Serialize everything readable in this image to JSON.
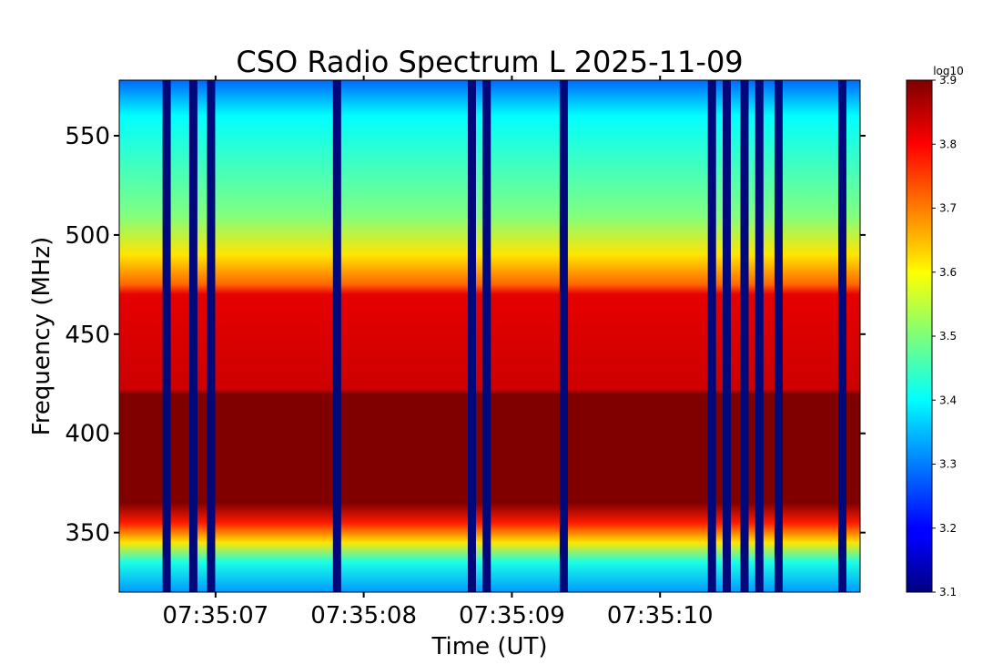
{
  "chart_data": {
    "type": "heatmap",
    "title": "CSO Radio Spectrum L 2025-11-09",
    "xlabel": "Time (UT)",
    "ylabel": "Frequency (MHz)",
    "xlim": [
      "07:35:06.35",
      "07:35:11.35"
    ],
    "ylim": [
      320,
      578
    ],
    "x_ticks": [
      "07:35:07",
      "07:35:08",
      "07:35:09",
      "07:35:10"
    ],
    "y_ticks": [
      350,
      400,
      450,
      500,
      550
    ],
    "colorbar": {
      "label": "log10",
      "range": [
        3.1,
        3.9
      ],
      "ticks": [
        "3.1",
        "3.2",
        "3.3",
        "3.4",
        "3.5",
        "3.6",
        "3.7",
        "3.8",
        "3.9"
      ],
      "colormap": "jet"
    },
    "grid": false,
    "spectrum_profile": [
      {
        "mhz": 320,
        "level": 3.32
      },
      {
        "mhz": 335,
        "level": 3.42
      },
      {
        "mhz": 345,
        "level": 3.62
      },
      {
        "mhz": 355,
        "level": 3.78
      },
      {
        "mhz": 365,
        "level": 3.9
      },
      {
        "mhz": 420,
        "level": 3.9
      },
      {
        "mhz": 422,
        "level": 3.84
      },
      {
        "mhz": 470,
        "level": 3.82
      },
      {
        "mhz": 475,
        "level": 3.72
      },
      {
        "mhz": 490,
        "level": 3.62
      },
      {
        "mhz": 510,
        "level": 3.5
      },
      {
        "mhz": 540,
        "level": 3.44
      },
      {
        "mhz": 560,
        "level": 3.4
      },
      {
        "mhz": 578,
        "level": 3.28
      }
    ],
    "dropouts_time_s": [
      0.32,
      0.5,
      0.62,
      1.47,
      2.38,
      2.48,
      3.0,
      4.0,
      4.1,
      4.22,
      4.32,
      4.45,
      4.88
    ]
  }
}
